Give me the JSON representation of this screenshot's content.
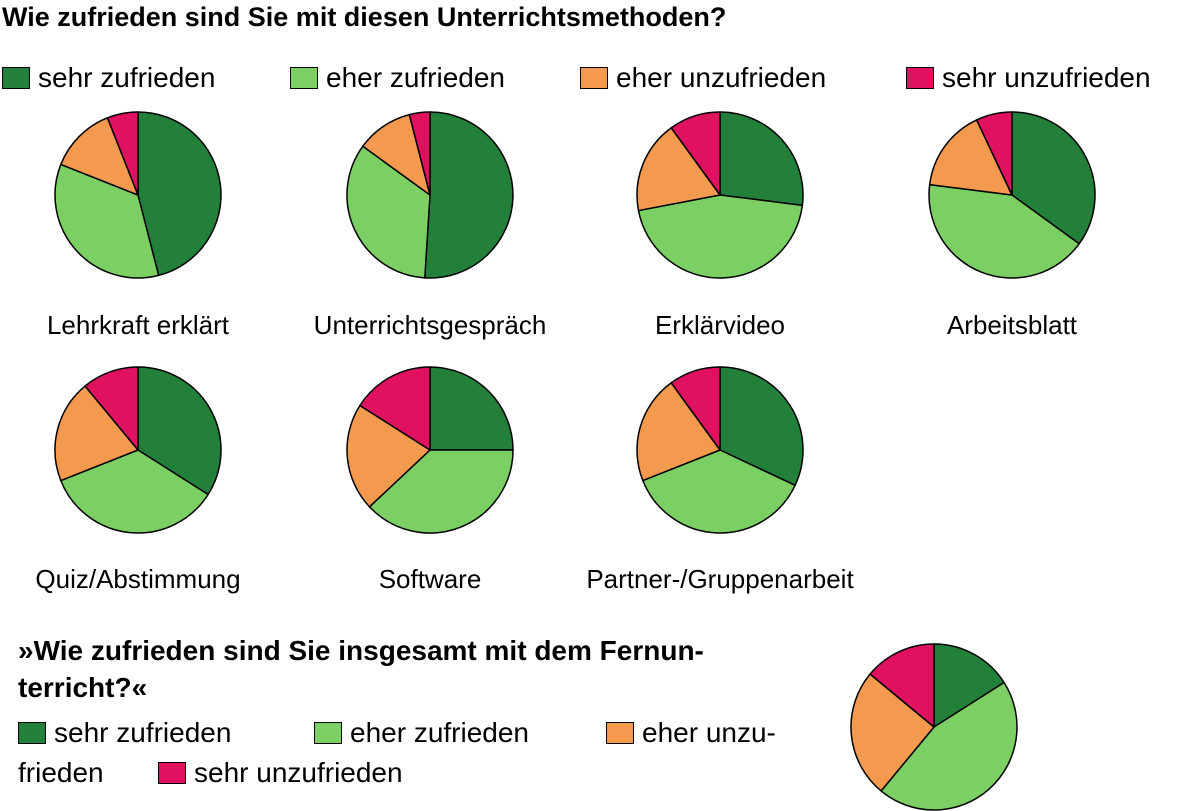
{
  "title": "Wie zufrieden sind Sie mit diesen Unterrichtsmethoden?",
  "legend": [
    {
      "label": "sehr zufrieden",
      "color": "#23803a"
    },
    {
      "label": "eher zufrieden",
      "color": "#7ccf63"
    },
    {
      "label": "eher unzufrieden",
      "color": "#f39a4f"
    },
    {
      "label": "sehr unzufrieden",
      "color": "#e0115f"
    }
  ],
  "bottom": {
    "title_line1": "»Wie zufrieden sind Sie insgesamt mit dem Fernun-",
    "title_line2": "terricht?«",
    "legend_line1": [
      "sehr zufrieden",
      "eher zufrieden",
      "eher unzu-"
    ],
    "legend_line2": [
      "frieden",
      "sehr unzufrieden"
    ]
  },
  "chart_data": [
    {
      "type": "pie",
      "title": "Lehrkraft erklärt",
      "categories": [
        "sehr zufrieden",
        "eher zufrieden",
        "eher unzufrieden",
        "sehr unzufrieden"
      ],
      "values": [
        46,
        35,
        13,
        6
      ]
    },
    {
      "type": "pie",
      "title": "Unterrichtsgespräch",
      "categories": [
        "sehr zufrieden",
        "eher zufrieden",
        "eher unzufrieden",
        "sehr unzufrieden"
      ],
      "values": [
        51,
        34,
        11,
        4
      ]
    },
    {
      "type": "pie",
      "title": "Erklärvideo",
      "categories": [
        "sehr zufrieden",
        "eher zufrieden",
        "eher unzufrieden",
        "sehr unzufrieden"
      ],
      "values": [
        27,
        45,
        18,
        10
      ]
    },
    {
      "type": "pie",
      "title": "Arbeitsblatt",
      "categories": [
        "sehr zufrieden",
        "eher zufrieden",
        "eher unzufrieden",
        "sehr unzufrieden"
      ],
      "values": [
        35,
        42,
        16,
        7
      ]
    },
    {
      "type": "pie",
      "title": "Quiz/Abstimmung",
      "categories": [
        "sehr zufrieden",
        "eher zufrieden",
        "eher unzufrieden",
        "sehr unzufrieden"
      ],
      "values": [
        34,
        35,
        20,
        11
      ]
    },
    {
      "type": "pie",
      "title": "Software",
      "categories": [
        "sehr zufrieden",
        "eher zufrieden",
        "eher unzufrieden",
        "sehr unzufrieden"
      ],
      "values": [
        25,
        38,
        21,
        16
      ]
    },
    {
      "type": "pie",
      "title": "Partner-/Gruppenarbeit",
      "categories": [
        "sehr zufrieden",
        "eher zufrieden",
        "eher unzufrieden",
        "sehr unzufrieden"
      ],
      "values": [
        32,
        37,
        21,
        10
      ]
    },
    {
      "type": "pie",
      "title": "",
      "categories": [
        "sehr zufrieden",
        "eher zufrieden",
        "eher unzufrieden",
        "sehr unzufrieden"
      ],
      "values": [
        16,
        45,
        25,
        14
      ]
    }
  ]
}
